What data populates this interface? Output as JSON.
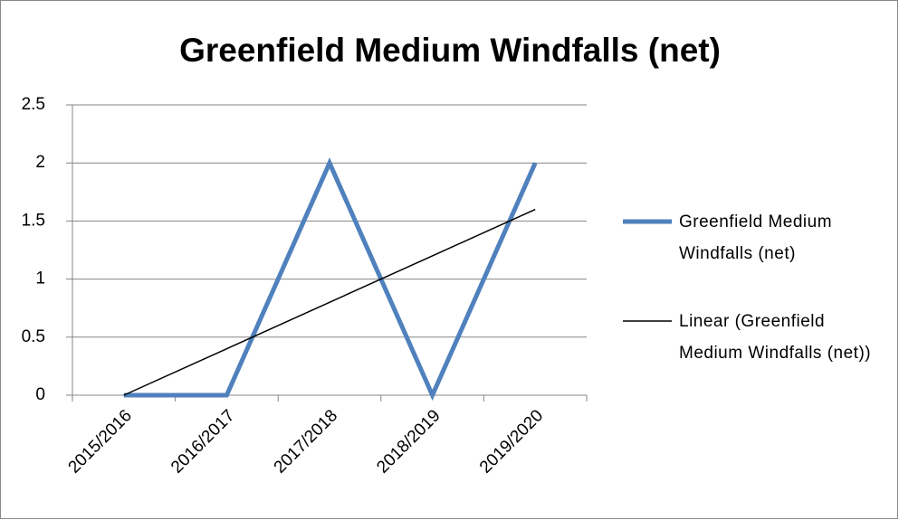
{
  "chart_data": {
    "type": "line",
    "title": "Greenfield Medium Windfalls (net)",
    "categories": [
      "2015/2016",
      "2016/2017",
      "2017/2018",
      "2018/2019",
      "2019/2020"
    ],
    "series": [
      {
        "name": "Greenfield Medium Windfalls (net)",
        "color": "#4f81bd",
        "values": [
          0,
          0,
          2,
          0,
          2
        ]
      },
      {
        "name": "Linear (Greenfield Medium Windfalls (net))",
        "color": "#000000",
        "values": [
          0,
          0.4,
          0.8,
          1.2,
          1.6
        ]
      }
    ],
    "ylim": [
      0,
      2.5
    ],
    "yticks": [
      0,
      0.5,
      1,
      1.5,
      2,
      2.5
    ],
    "grid": true,
    "legend": "right"
  }
}
